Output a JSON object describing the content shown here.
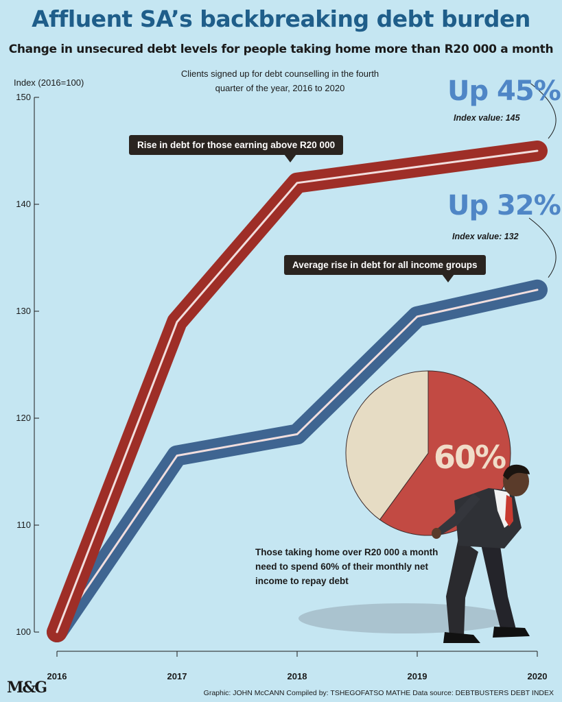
{
  "header": {
    "title": "Affluent SA’s backbreaking debt burden",
    "subtitle": "Change in unsecured debt levels for people taking home more than R20 000 a month",
    "note": "Clients signed up for debt counselling in the fourth quarter of the year, 2016 to 2020"
  },
  "callouts": {
    "high": "Rise in debt for those earning above R20 000",
    "avg": "Average rise in debt for all income groups"
  },
  "endpoints": {
    "high_up": "Up 45%",
    "high_index": "Index value: 145",
    "avg_up": "Up 32%",
    "avg_index": "Index value: 132"
  },
  "pie_note": "Those taking home over R20 000 a month need to spend 60% of their monthly net income to repay debt",
  "footer": {
    "logo": "M&G",
    "credits": "Graphic: JOHN McCANN  Compiled by: TSHEGOFATSO MATHE  Data source: DEBTBUSTERS DEBT INDEX"
  },
  "colors": {
    "background": "#c5e6f2",
    "high_series": "#9e2e27",
    "avg_series": "#3f6591",
    "pie_debt": "#c24a43",
    "pie_rest": "#e6dcc4"
  },
  "chart_data": [
    {
      "type": "line",
      "ylabel": "Index (2016=100)",
      "x": [
        "2016",
        "2017",
        "2018",
        "2019",
        "2020"
      ],
      "yticks": [
        "100",
        "110",
        "120",
        "130",
        "140",
        "150"
      ],
      "ylim": [
        100,
        150
      ],
      "series": [
        {
          "name": "Rise in debt for those earning above R20 000",
          "values": [
            100,
            129,
            142,
            143.5,
            145
          ]
        },
        {
          "name": "Average rise in debt for all income groups",
          "values": [
            100,
            116.5,
            118.5,
            129.5,
            132
          ]
        }
      ]
    },
    {
      "type": "pie",
      "slices": [
        {
          "label": "60%",
          "value": 60
        },
        {
          "label": "",
          "value": 40
        }
      ]
    }
  ]
}
